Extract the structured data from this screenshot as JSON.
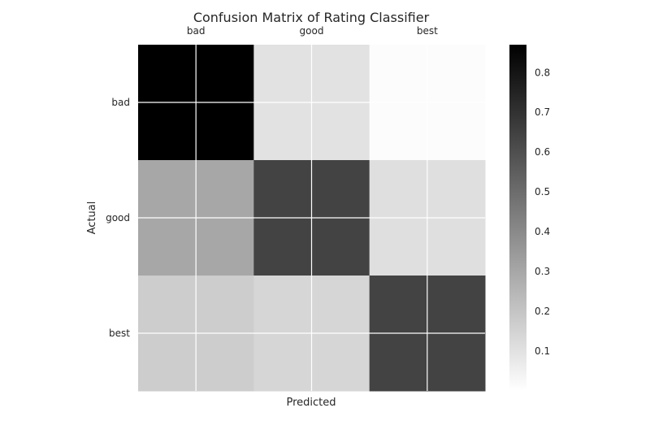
{
  "chart_data": {
    "type": "heatmap",
    "title": "Confusion Matrix of Rating Classifier",
    "xlabel": "Predicted",
    "ylabel": "Actual",
    "x_categories": [
      "bad",
      "good",
      "best"
    ],
    "y_categories": [
      "bad",
      "good",
      "best"
    ],
    "matrix": [
      [
        0.87,
        0.1,
        0.01
      ],
      [
        0.3,
        0.64,
        0.11
      ],
      [
        0.17,
        0.14,
        0.64
      ]
    ],
    "colormap": "gray_r",
    "colorbar": {
      "range": [
        0.0,
        0.87
      ],
      "ticks": [
        "0.1",
        "0.2",
        "0.3",
        "0.4",
        "0.5",
        "0.6",
        "0.7",
        "0.8"
      ],
      "tick_values": [
        0.1,
        0.2,
        0.3,
        0.4,
        0.5,
        0.6,
        0.7,
        0.8
      ]
    },
    "grid": true,
    "x_ticks_position": "top"
  }
}
